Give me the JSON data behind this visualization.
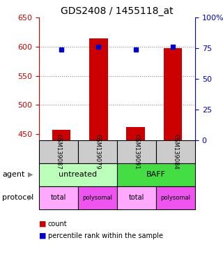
{
  "title": "GDS2408 / 1455118_at",
  "samples": [
    "GSM139087",
    "GSM139079",
    "GSM139091",
    "GSM139084"
  ],
  "counts": [
    457,
    614,
    462,
    597
  ],
  "percentile_ranks": [
    74,
    76,
    74,
    76
  ],
  "ylim_left": [
    440,
    650
  ],
  "ylim_right": [
    0,
    100
  ],
  "yticks_left": [
    450,
    500,
    550,
    600,
    650
  ],
  "yticks_right": [
    0,
    25,
    50,
    75,
    100
  ],
  "yticklabels_right": [
    "0",
    "25",
    "50",
    "75",
    "100%"
  ],
  "bar_color": "#cc0000",
  "dot_color": "#0000cc",
  "bar_width": 0.5,
  "agent_colors": [
    "#bbffbb",
    "#44dd44"
  ],
  "protocol_colors_even": "#ffaaff",
  "protocol_colors_odd": "#ee55ee",
  "protocol_labels": [
    "total",
    "polysomal",
    "total",
    "polysomal"
  ],
  "agent_labels": [
    "untreated",
    "BAFF"
  ],
  "grid_color": "#888888",
  "left_tick_color": "#cc0000",
  "right_tick_color": "#0000cc",
  "sample_box_color": "#cccccc",
  "legend_count_color": "#cc0000",
  "legend_pct_color": "#0000cc"
}
